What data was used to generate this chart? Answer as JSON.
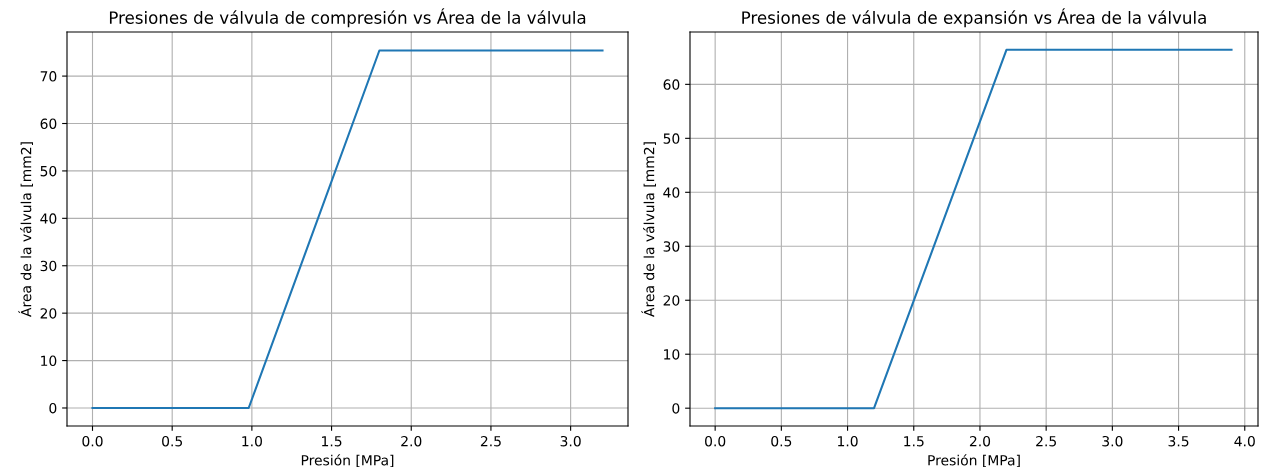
{
  "chart_data": [
    {
      "type": "line",
      "title": "Presiones de válvula de compresión vs Área de la válvula",
      "xlabel": "Presión [MPa]",
      "ylabel": "Área de la válvula [mm2]",
      "grid": true,
      "xlim": [
        -0.16,
        3.36
      ],
      "ylim": [
        -3.8,
        79.3
      ],
      "xticks": [
        {
          "value": 0,
          "label": "0.0"
        },
        {
          "value": 0.5,
          "label": "0.5"
        },
        {
          "value": 1,
          "label": "1.0"
        },
        {
          "value": 1.5,
          "label": "1.5"
        },
        {
          "value": 2,
          "label": "2.0"
        },
        {
          "value": 2.5,
          "label": "2.5"
        },
        {
          "value": 3,
          "label": "3.0"
        }
      ],
      "yticks": [
        0,
        10,
        20,
        30,
        40,
        50,
        60,
        70
      ],
      "series": [
        {
          "color": "#1f77b4",
          "x": [
            0,
            0.98,
            1.8,
            3.2
          ],
          "values": [
            0,
            0,
            75.4,
            75.4
          ]
        }
      ]
    },
    {
      "type": "line",
      "title": "Presiones de válvula de expansión vs Área de la válvula",
      "xlabel": "Presión [MPa]",
      "ylabel": "Área de la válvula [mm2]",
      "grid": true,
      "xlim": [
        -0.19,
        4.1
      ],
      "ylim": [
        -3.3,
        69.7
      ],
      "xticks": [
        {
          "value": 0,
          "label": "0.0"
        },
        {
          "value": 0.5,
          "label": "0.5"
        },
        {
          "value": 1,
          "label": "1.0"
        },
        {
          "value": 1.5,
          "label": "1.5"
        },
        {
          "value": 2,
          "label": "2.0"
        },
        {
          "value": 2.5,
          "label": "2.5"
        },
        {
          "value": 3,
          "label": "3.0"
        },
        {
          "value": 3.5,
          "label": "3.5"
        },
        {
          "value": 4,
          "label": "4.0"
        }
      ],
      "yticks": [
        0,
        10,
        20,
        30,
        40,
        50,
        60
      ],
      "series": [
        {
          "color": "#1f77b4",
          "x": [
            0,
            1.2,
            2.2,
            3.9
          ],
          "values": [
            0,
            0,
            66.4,
            66.4
          ]
        }
      ]
    }
  ]
}
